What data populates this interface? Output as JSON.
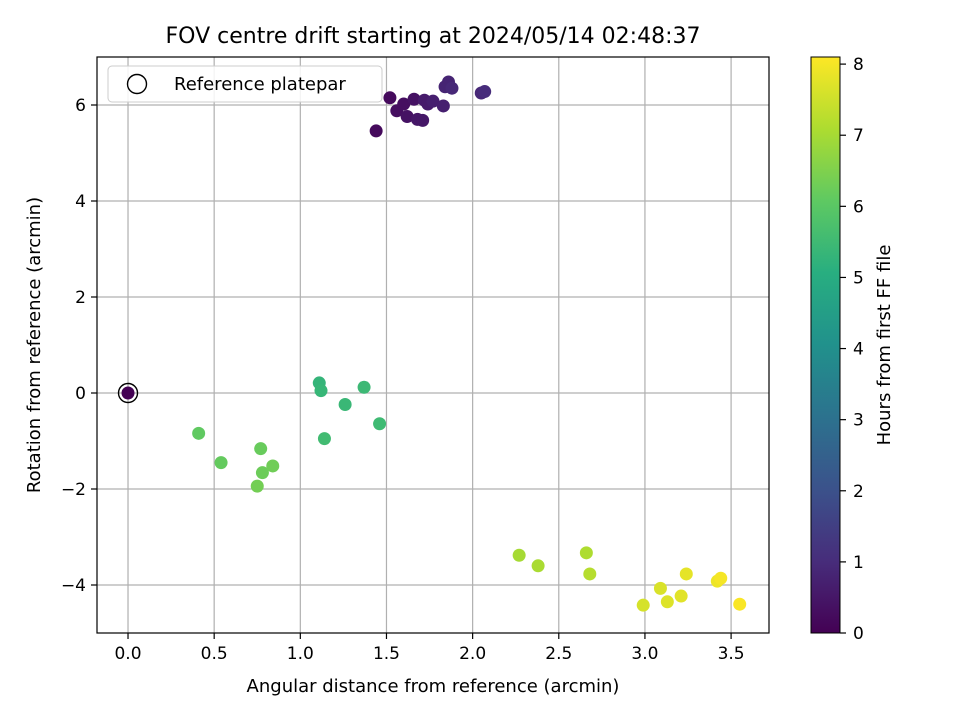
{
  "chart_data": {
    "type": "scatter",
    "title": "FOV centre drift starting at 2024/05/14 02:48:37",
    "xlabel": "Angular distance from reference (arcmin)",
    "ylabel": "Rotation from reference (arcmin)",
    "xlim": [
      -0.18,
      3.72
    ],
    "ylim": [
      -5.0,
      7.0
    ],
    "xticks": [
      0.0,
      0.5,
      1.0,
      1.5,
      2.0,
      2.5,
      3.0,
      3.5
    ],
    "xtick_labels": [
      "0.0",
      "0.5",
      "1.0",
      "1.5",
      "2.0",
      "2.5",
      "3.0",
      "3.5"
    ],
    "yticks": [
      -4,
      -2,
      0,
      2,
      4,
      6
    ],
    "ytick_labels": [
      "−4",
      "−2",
      "0",
      "2",
      "4",
      "6"
    ],
    "grid": true,
    "legend": {
      "placement": "top-left",
      "entries": [
        "Reference platepar"
      ]
    },
    "colorbar": {
      "label": "Hours from first FF file",
      "colormap": "viridis",
      "range": [
        0,
        8.1
      ],
      "ticks": [
        0,
        1,
        2,
        3,
        4,
        5,
        6,
        7,
        8
      ],
      "tick_labels": [
        "0",
        "1",
        "2",
        "3",
        "4",
        "5",
        "6",
        "7",
        "8"
      ]
    },
    "reference_point": {
      "x": 0.0,
      "y": 0.0,
      "hours": 0.0,
      "series": "Reference platepar"
    },
    "points": [
      {
        "x": 0.0,
        "y": 0.0,
        "hours": 0.0
      },
      {
        "x": 1.44,
        "y": 5.46,
        "hours": 0.2
      },
      {
        "x": 1.52,
        "y": 6.15,
        "hours": 0.2
      },
      {
        "x": 1.56,
        "y": 5.88,
        "hours": 0.3
      },
      {
        "x": 1.6,
        "y": 6.02,
        "hours": 0.3
      },
      {
        "x": 1.62,
        "y": 5.76,
        "hours": 0.4
      },
      {
        "x": 1.66,
        "y": 6.12,
        "hours": 0.4
      },
      {
        "x": 1.68,
        "y": 5.7,
        "hours": 0.5
      },
      {
        "x": 1.71,
        "y": 5.68,
        "hours": 0.5
      },
      {
        "x": 1.72,
        "y": 6.1,
        "hours": 0.6
      },
      {
        "x": 1.74,
        "y": 6.02,
        "hours": 0.6
      },
      {
        "x": 1.77,
        "y": 6.08,
        "hours": 0.7
      },
      {
        "x": 1.83,
        "y": 5.98,
        "hours": 0.7
      },
      {
        "x": 1.84,
        "y": 6.38,
        "hours": 0.8
      },
      {
        "x": 1.86,
        "y": 6.48,
        "hours": 0.8
      },
      {
        "x": 1.88,
        "y": 6.35,
        "hours": 0.9
      },
      {
        "x": 2.05,
        "y": 6.25,
        "hours": 0.9
      },
      {
        "x": 2.07,
        "y": 6.28,
        "hours": 1.0
      },
      {
        "x": 1.11,
        "y": 0.21,
        "hours": 5.3
      },
      {
        "x": 1.12,
        "y": 0.05,
        "hours": 5.35
      },
      {
        "x": 1.26,
        "y": -0.24,
        "hours": 5.4
      },
      {
        "x": 1.37,
        "y": 0.12,
        "hours": 5.45
      },
      {
        "x": 1.46,
        "y": -0.64,
        "hours": 5.5
      },
      {
        "x": 1.14,
        "y": -0.95,
        "hours": 5.55
      },
      {
        "x": 0.41,
        "y": -0.84,
        "hours": 6.1
      },
      {
        "x": 0.54,
        "y": -1.45,
        "hours": 6.15
      },
      {
        "x": 0.77,
        "y": -1.16,
        "hours": 6.2
      },
      {
        "x": 0.78,
        "y": -1.66,
        "hours": 6.25
      },
      {
        "x": 0.84,
        "y": -1.52,
        "hours": 6.3
      },
      {
        "x": 0.75,
        "y": -1.94,
        "hours": 6.35
      },
      {
        "x": 2.27,
        "y": -3.38,
        "hours": 7.0
      },
      {
        "x": 2.38,
        "y": -3.6,
        "hours": 7.05
      },
      {
        "x": 2.66,
        "y": -3.33,
        "hours": 7.1
      },
      {
        "x": 2.68,
        "y": -3.77,
        "hours": 7.2
      },
      {
        "x": 2.99,
        "y": -4.42,
        "hours": 7.6
      },
      {
        "x": 3.09,
        "y": -4.07,
        "hours": 7.65
      },
      {
        "x": 3.13,
        "y": -4.35,
        "hours": 7.7
      },
      {
        "x": 3.21,
        "y": -4.23,
        "hours": 7.75
      },
      {
        "x": 3.24,
        "y": -3.77,
        "hours": 7.8
      },
      {
        "x": 3.42,
        "y": -3.92,
        "hours": 7.9
      },
      {
        "x": 3.44,
        "y": -3.86,
        "hours": 8.0
      },
      {
        "x": 3.55,
        "y": -4.4,
        "hours": 8.05
      }
    ]
  }
}
